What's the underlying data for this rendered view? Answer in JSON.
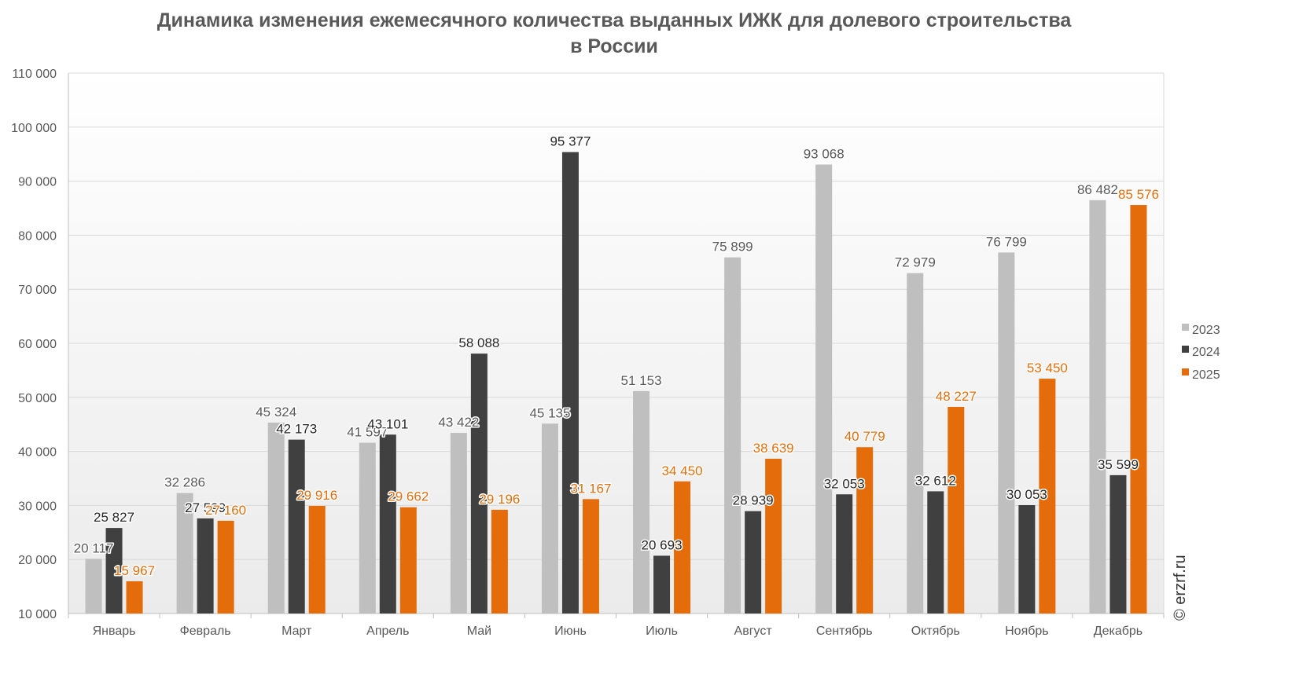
{
  "title_line1": "Динамика изменения ежемесячного количества выданных ИЖК для долевого строительства",
  "title_line2": "в России",
  "watermark": "© erzrf.ru",
  "colors": {
    "2023": "#bfbfbf",
    "2024": "#404040",
    "2025": "#e46c0a",
    "text": "#595959",
    "grid": "#d9d9d9"
  },
  "chart_data": {
    "type": "bar",
    "title": "Динамика изменения ежемесячного количества выданных ИЖК для долевого строительства в России",
    "categories": [
      "Январь",
      "Февраль",
      "Март",
      "Апрель",
      "Май",
      "Июнь",
      "Июль",
      "Август",
      "Сентябрь",
      "Октябрь",
      "Ноябрь",
      "Декабрь"
    ],
    "series": [
      {
        "name": "2023",
        "values": [
          20117,
          32286,
          45324,
          41597,
          43422,
          45135,
          51153,
          75899,
          93068,
          72979,
          76799,
          86482
        ],
        "labels": [
          "20 117",
          "32 286",
          "45 324",
          "41 597",
          "43 422",
          "45 135",
          "51 153",
          "75 899",
          "93 068",
          "72 979",
          "76 799",
          "86 482"
        ]
      },
      {
        "name": "2024",
        "values": [
          25827,
          27599,
          42173,
          43101,
          58088,
          95377,
          20693,
          28939,
          32053,
          32612,
          30053,
          35599
        ],
        "labels": [
          "25 827",
          "27 599",
          "42 173",
          "43 101",
          "58 088",
          "95 377",
          "20 693",
          "28 939",
          "32 053",
          "32 612",
          "30 053",
          "35 599"
        ]
      },
      {
        "name": "2025",
        "values": [
          15967,
          27160,
          29916,
          29662,
          29196,
          31167,
          34450,
          38639,
          40779,
          48227,
          53450,
          85576
        ],
        "labels": [
          "15 967",
          "27 160",
          "29 916",
          "29 662",
          "29 196",
          "31 167",
          "34 450",
          "38 639",
          "40 779",
          "48 227",
          "53 450",
          "85 576"
        ]
      }
    ],
    "ylim": [
      10000,
      110000
    ],
    "yticks": [
      10000,
      20000,
      30000,
      40000,
      50000,
      60000,
      70000,
      80000,
      90000,
      100000,
      110000
    ],
    "ytick_labels": [
      "10 000",
      "20 000",
      "30 000",
      "40 000",
      "50 000",
      "60 000",
      "70 000",
      "80 000",
      "90 000",
      "100 000",
      "110 000"
    ],
    "grid": true,
    "legend": "right"
  }
}
